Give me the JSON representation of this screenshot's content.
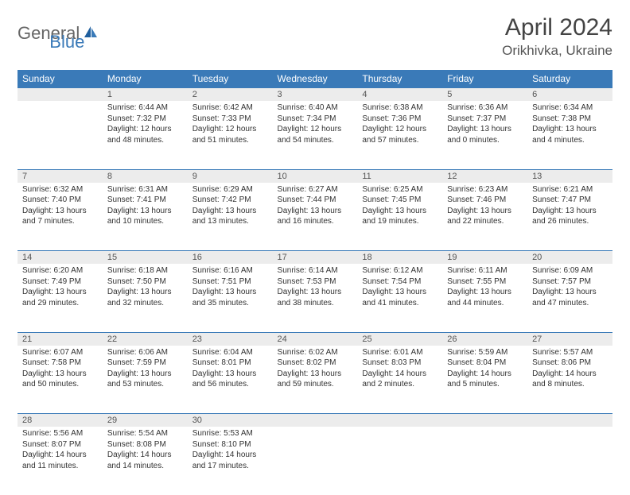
{
  "brand": {
    "part1": "General",
    "part2": "Blue"
  },
  "title": "April 2024",
  "location": "Orikhivka, Ukraine",
  "colors": {
    "header_bg": "#3a7ab8",
    "header_text": "#ffffff",
    "daynum_bg": "#ececec",
    "text": "#333333",
    "brand_gray": "#666666",
    "brand_blue": "#3a7ab8"
  },
  "day_headers": [
    "Sunday",
    "Monday",
    "Tuesday",
    "Wednesday",
    "Thursday",
    "Friday",
    "Saturday"
  ],
  "weeks": [
    [
      {
        "num": "",
        "sunrise": "",
        "sunset": "",
        "daylight": ""
      },
      {
        "num": "1",
        "sunrise": "6:44 AM",
        "sunset": "7:32 PM",
        "daylight": "12 hours and 48 minutes."
      },
      {
        "num": "2",
        "sunrise": "6:42 AM",
        "sunset": "7:33 PM",
        "daylight": "12 hours and 51 minutes."
      },
      {
        "num": "3",
        "sunrise": "6:40 AM",
        "sunset": "7:34 PM",
        "daylight": "12 hours and 54 minutes."
      },
      {
        "num": "4",
        "sunrise": "6:38 AM",
        "sunset": "7:36 PM",
        "daylight": "12 hours and 57 minutes."
      },
      {
        "num": "5",
        "sunrise": "6:36 AM",
        "sunset": "7:37 PM",
        "daylight": "13 hours and 0 minutes."
      },
      {
        "num": "6",
        "sunrise": "6:34 AM",
        "sunset": "7:38 PM",
        "daylight": "13 hours and 4 minutes."
      }
    ],
    [
      {
        "num": "7",
        "sunrise": "6:32 AM",
        "sunset": "7:40 PM",
        "daylight": "13 hours and 7 minutes."
      },
      {
        "num": "8",
        "sunrise": "6:31 AM",
        "sunset": "7:41 PM",
        "daylight": "13 hours and 10 minutes."
      },
      {
        "num": "9",
        "sunrise": "6:29 AM",
        "sunset": "7:42 PM",
        "daylight": "13 hours and 13 minutes."
      },
      {
        "num": "10",
        "sunrise": "6:27 AM",
        "sunset": "7:44 PM",
        "daylight": "13 hours and 16 minutes."
      },
      {
        "num": "11",
        "sunrise": "6:25 AM",
        "sunset": "7:45 PM",
        "daylight": "13 hours and 19 minutes."
      },
      {
        "num": "12",
        "sunrise": "6:23 AM",
        "sunset": "7:46 PM",
        "daylight": "13 hours and 22 minutes."
      },
      {
        "num": "13",
        "sunrise": "6:21 AM",
        "sunset": "7:47 PM",
        "daylight": "13 hours and 26 minutes."
      }
    ],
    [
      {
        "num": "14",
        "sunrise": "6:20 AM",
        "sunset": "7:49 PM",
        "daylight": "13 hours and 29 minutes."
      },
      {
        "num": "15",
        "sunrise": "6:18 AM",
        "sunset": "7:50 PM",
        "daylight": "13 hours and 32 minutes."
      },
      {
        "num": "16",
        "sunrise": "6:16 AM",
        "sunset": "7:51 PM",
        "daylight": "13 hours and 35 minutes."
      },
      {
        "num": "17",
        "sunrise": "6:14 AM",
        "sunset": "7:53 PM",
        "daylight": "13 hours and 38 minutes."
      },
      {
        "num": "18",
        "sunrise": "6:12 AM",
        "sunset": "7:54 PM",
        "daylight": "13 hours and 41 minutes."
      },
      {
        "num": "19",
        "sunrise": "6:11 AM",
        "sunset": "7:55 PM",
        "daylight": "13 hours and 44 minutes."
      },
      {
        "num": "20",
        "sunrise": "6:09 AM",
        "sunset": "7:57 PM",
        "daylight": "13 hours and 47 minutes."
      }
    ],
    [
      {
        "num": "21",
        "sunrise": "6:07 AM",
        "sunset": "7:58 PM",
        "daylight": "13 hours and 50 minutes."
      },
      {
        "num": "22",
        "sunrise": "6:06 AM",
        "sunset": "7:59 PM",
        "daylight": "13 hours and 53 minutes."
      },
      {
        "num": "23",
        "sunrise": "6:04 AM",
        "sunset": "8:01 PM",
        "daylight": "13 hours and 56 minutes."
      },
      {
        "num": "24",
        "sunrise": "6:02 AM",
        "sunset": "8:02 PM",
        "daylight": "13 hours and 59 minutes."
      },
      {
        "num": "25",
        "sunrise": "6:01 AM",
        "sunset": "8:03 PM",
        "daylight": "14 hours and 2 minutes."
      },
      {
        "num": "26",
        "sunrise": "5:59 AM",
        "sunset": "8:04 PM",
        "daylight": "14 hours and 5 minutes."
      },
      {
        "num": "27",
        "sunrise": "5:57 AM",
        "sunset": "8:06 PM",
        "daylight": "14 hours and 8 minutes."
      }
    ],
    [
      {
        "num": "28",
        "sunrise": "5:56 AM",
        "sunset": "8:07 PM",
        "daylight": "14 hours and 11 minutes."
      },
      {
        "num": "29",
        "sunrise": "5:54 AM",
        "sunset": "8:08 PM",
        "daylight": "14 hours and 14 minutes."
      },
      {
        "num": "30",
        "sunrise": "5:53 AM",
        "sunset": "8:10 PM",
        "daylight": "14 hours and 17 minutes."
      },
      {
        "num": "",
        "sunrise": "",
        "sunset": "",
        "daylight": ""
      },
      {
        "num": "",
        "sunrise": "",
        "sunset": "",
        "daylight": ""
      },
      {
        "num": "",
        "sunrise": "",
        "sunset": "",
        "daylight": ""
      },
      {
        "num": "",
        "sunrise": "",
        "sunset": "",
        "daylight": ""
      }
    ]
  ],
  "labels": {
    "sunrise": "Sunrise:",
    "sunset": "Sunset:",
    "daylight": "Daylight:"
  }
}
